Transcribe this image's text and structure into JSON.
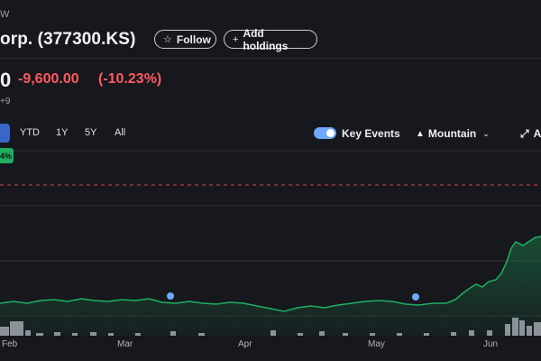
{
  "header": {
    "exchange": "W",
    "title": "orp. (377300.KS)",
    "follow_label": "Follow",
    "add_holdings_label": "Add holdings"
  },
  "quote": {
    "price": "0",
    "change": "-9,600.00",
    "change_pct": "(-10.23%)",
    "timezone_fragment": "+9"
  },
  "range_tabs": [
    "YTD",
    "1Y",
    "5Y",
    "All"
  ],
  "controls": {
    "key_events_label": "Key Events",
    "key_events_on": true,
    "chart_type_label": "Mountain",
    "expand_label": "A"
  },
  "chart": {
    "badge_text": "4%",
    "x_axis_months": [
      "Feb",
      "Mar",
      "Apr",
      "May",
      "Jun"
    ],
    "line_color": "#1fae61",
    "event_color": "#6ea8ff",
    "reference_line_color": "#d9434a"
  },
  "colors": {
    "background": "#16181d",
    "negative": "#ff5a5f",
    "accent": "#3a66c9"
  },
  "icons": {
    "follow": "star-outline-icon",
    "add": "plus-icon",
    "mountain": "mountain-icon",
    "dropdown": "chevron-down-icon",
    "expand": "expand-arrows-icon"
  }
}
